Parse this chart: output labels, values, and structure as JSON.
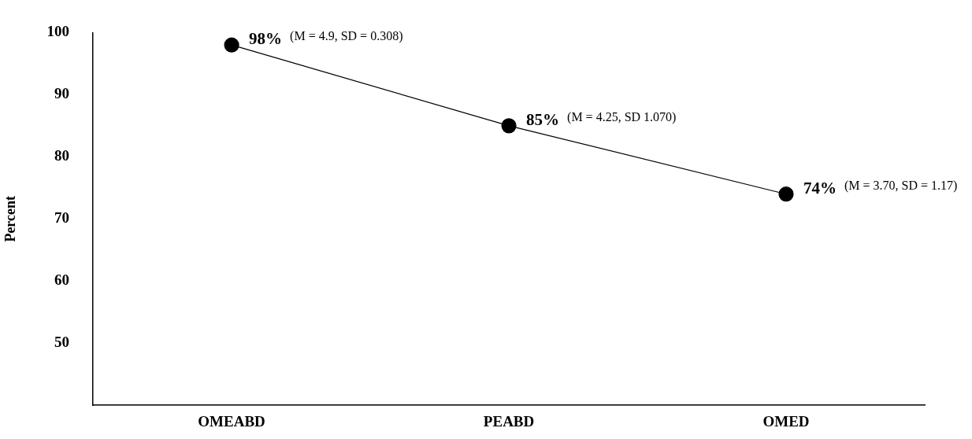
{
  "chart_data": {
    "type": "line",
    "ylabel": "Percent",
    "categories": [
      "OMEABD",
      "PEABD",
      "OMED"
    ],
    "series": [
      {
        "color": "#000000",
        "values": [
          98,
          85,
          74
        ],
        "value_labels": [
          "98%",
          "85%",
          "74%"
        ]
      }
    ],
    "ylim": [
      40,
      100
    ],
    "yticks": [
      50,
      60,
      70,
      80,
      90,
      100
    ],
    "grid": false,
    "legend": false,
    "marker": "circle",
    "line_style": "solid",
    "annotations": [
      "(M = 4.9, SD = 0.308)",
      "(M = 4.25, SD 1.070)",
      "(M = 3.70, SD = 1.17)"
    ]
  }
}
